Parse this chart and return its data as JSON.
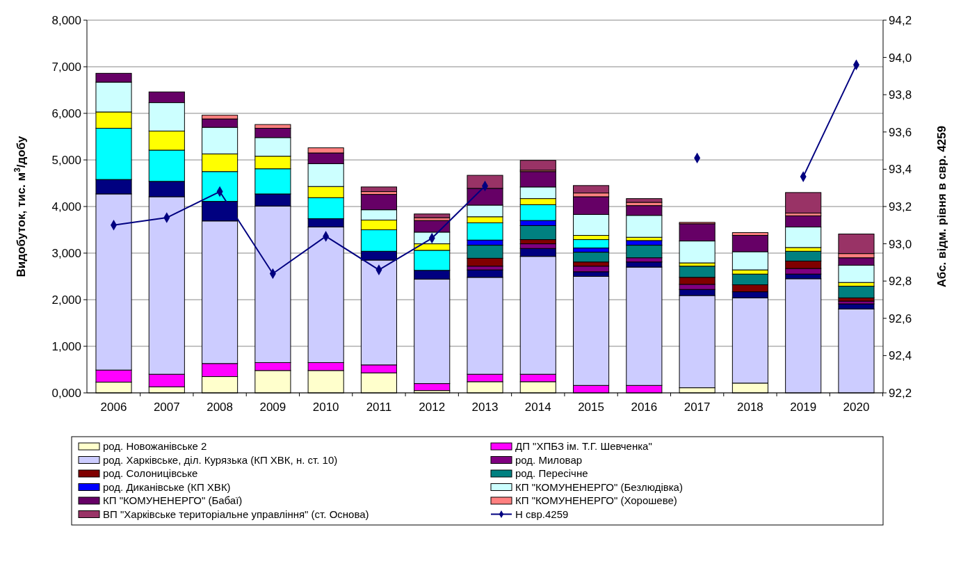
{
  "chart_data": {
    "type": "bar",
    "stacked": true,
    "ylabel": "Видобуток, тис. м$^{3}$/добу",
    "y2label": "Абс. відм. рівня в свр. 4259",
    "categories": [
      "2006",
      "2007",
      "2008",
      "2009",
      "2010",
      "2011",
      "2012",
      "2013",
      "2014",
      "2015",
      "2016",
      "2017",
      "2018",
      "2019",
      "2020"
    ],
    "ylim": [
      0,
      8
    ],
    "yticks": [
      {
        "value": 0,
        "label": "0,000"
      },
      {
        "value": 1,
        "label": "1,000"
      },
      {
        "value": 2,
        "label": "2,000"
      },
      {
        "value": 3,
        "label": "3,000"
      },
      {
        "value": 4,
        "label": "4,000"
      },
      {
        "value": 5,
        "label": "5,000"
      },
      {
        "value": 6,
        "label": "6,000"
      },
      {
        "value": 7,
        "label": "7,000"
      },
      {
        "value": 8,
        "label": "8,000"
      }
    ],
    "y2lim": [
      92.2,
      94.2
    ],
    "y2ticks": [
      {
        "value": 92.2,
        "label": "92,2"
      },
      {
        "value": 92.4,
        "label": "92,4"
      },
      {
        "value": 92.6,
        "label": "92,6"
      },
      {
        "value": 92.8,
        "label": "92,8"
      },
      {
        "value": 93.0,
        "label": "93,0"
      },
      {
        "value": 93.2,
        "label": "93,2"
      },
      {
        "value": 93.4,
        "label": "93,4"
      },
      {
        "value": 93.6,
        "label": "93,6"
      },
      {
        "value": 93.8,
        "label": "93,8"
      },
      {
        "value": 94.0,
        "label": "94,0"
      },
      {
        "value": 94.2,
        "label": "94,2"
      }
    ],
    "grid": "y",
    "legend": "bottom",
    "marker": "diamond",
    "series": [
      {
        "name": "род. Новожанівське 2",
        "color": "#ffffcc",
        "values": [
          0.23,
          0.13,
          0.35,
          0.48,
          0.48,
          0.43,
          0.05,
          0.24,
          0.24,
          null,
          null,
          0.11,
          0.21,
          0,
          0
        ]
      },
      {
        "name": "ДП \"ХПБЗ ім. Т.Г. Шевченка\"",
        "color": "#ff00ff",
        "values": [
          0.26,
          0.27,
          0.28,
          0.17,
          0.17,
          0.17,
          0.15,
          0.16,
          0.16,
          0.16,
          0.16,
          0,
          0,
          0,
          0
        ]
      },
      {
        "name": "род. Харківське, діл. Курязька (КП ХВК, н. ст. 10)",
        "color": "#ccccff",
        "values": [
          3.78,
          3.81,
          3.06,
          3.36,
          2.91,
          2.25,
          2.24,
          2.08,
          2.53,
          2.34,
          2.54,
          1.98,
          1.83,
          2.45,
          1.8
        ]
      },
      {
        "color": "#000080",
        "values": [
          0.31,
          0.33,
          0.42,
          0.26,
          0.18,
          0.19,
          0.19,
          0.16,
          0.17,
          0.1,
          0.11,
          0.13,
          0.13,
          0.1,
          0.11
        ]
      },
      {
        "name": "род. Миловар",
        "color": "#800080",
        "values": [
          0,
          0,
          0,
          0,
          0,
          0,
          0,
          0.08,
          0.1,
          0.12,
          0.09,
          0.11,
          0,
          0.12,
          0.06
        ]
      },
      {
        "name": "род. Солоницівське",
        "color": "#800000",
        "values": [
          0,
          0,
          0,
          0,
          0,
          0,
          0,
          0.17,
          0.09,
          0.09,
          0,
          0.15,
          0.15,
          0.16,
          0.07
        ]
      },
      {
        "name": "род. Пересічне",
        "color": "#008080",
        "values": [
          0,
          0,
          0,
          0,
          0,
          0,
          0,
          0.28,
          0.3,
          0.21,
          0.27,
          0.24,
          0.23,
          0.21,
          0.25
        ]
      },
      {
        "name": "род. Диканівське (КП ХВК)",
        "color": "#0000ff",
        "values": [
          0,
          0,
          0,
          0,
          0,
          0,
          0,
          0.11,
          0.11,
          0.09,
          0.1,
          0,
          0,
          0,
          0
        ]
      },
      {
        "color": "#00ffff",
        "values": [
          1.1,
          0.67,
          0.64,
          0.54,
          0.45,
          0.46,
          0.43,
          0.37,
          0.34,
          0.18,
          0,
          0,
          0,
          0,
          0
        ]
      },
      {
        "color": "#ffff00",
        "values": [
          0.35,
          0.41,
          0.38,
          0.27,
          0.24,
          0.21,
          0.14,
          0.13,
          0.13,
          0.09,
          0.07,
          0.07,
          0.09,
          0.08,
          0.08
        ]
      },
      {
        "name": "КП \"КОМУНЕНЕРГО\" (Безлюдівка)",
        "color": "#ccffff",
        "values": [
          0.64,
          0.61,
          0.57,
          0.4,
          0.49,
          0.22,
          0.25,
          0.25,
          0.25,
          0.45,
          0.47,
          0.47,
          0.39,
          0.44,
          0.37
        ]
      },
      {
        "name": "КП \"КОМУНЕНЕРГО\" (Бабаї)",
        "color": "#660066",
        "values": [
          0.19,
          0.23,
          0.18,
          0.2,
          0.23,
          0.33,
          0.25,
          0.36,
          0.33,
          0.38,
          0.21,
          0.37,
          0.35,
          0.24,
          0.16
        ]
      },
      {
        "name": "КП \"КОМУНЕНЕРГО\" (Хорошеве)",
        "color": "#ff8080",
        "values": [
          0,
          0,
          0.08,
          0.08,
          0.11,
          0.06,
          0.06,
          0,
          0.03,
          0.08,
          0.07,
          0.03,
          0.06,
          0.06,
          0.09
        ]
      },
      {
        "name": "ВП \"Харківське територіальне управління\" (ст. Основа)",
        "color": "#993366",
        "values": [
          0,
          0,
          0,
          0,
          0,
          0.1,
          0.08,
          0.28,
          0.21,
          0.16,
          0.08,
          0,
          0,
          0.44,
          0.42
        ]
      },
      {
        "name": "Н свр.4259",
        "type": "line",
        "axis": "y2",
        "color": "#000080",
        "values": [
          93.1,
          93.14,
          93.28,
          92.84,
          93.04,
          92.86,
          93.03,
          93.31,
          null,
          null,
          null,
          93.46,
          null,
          93.36,
          93.96
        ]
      }
    ]
  }
}
